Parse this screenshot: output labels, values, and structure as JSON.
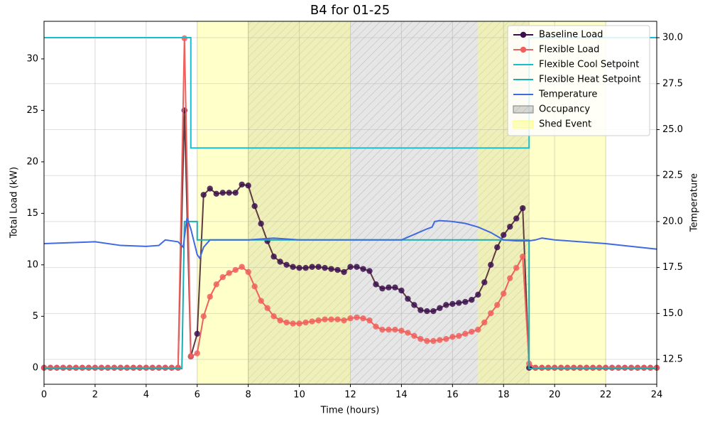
{
  "chart_data": {
    "type": "line",
    "title": "B4 for 01-25",
    "xlabel": "Time (hours)",
    "ylabel": "Total Load (kW)",
    "y2label": "Temperature",
    "xlim": [
      0,
      24
    ],
    "xticks": [
      0,
      2,
      4,
      6,
      8,
      10,
      12,
      14,
      16,
      18,
      20,
      22,
      24
    ],
    "ylim": [
      -1.6,
      33.65
    ],
    "yticks": [
      0,
      5,
      10,
      15,
      20,
      25,
      30
    ],
    "y2lim": [
      11.15,
      30.89
    ],
    "y2ticks": [
      12.5,
      {
        "value": 15,
        "label": "15.0"
      },
      17.5,
      {
        "value": 20,
        "label": "20.0"
      },
      22.5,
      {
        "value": 25,
        "label": "25.0"
      },
      27.5,
      {
        "value": 30,
        "label": "30.0"
      }
    ],
    "grid": true,
    "legend": "upper right",
    "x": [
      0,
      0.25,
      0.5,
      0.75,
      1,
      1.25,
      1.5,
      1.75,
      2,
      2.25,
      2.5,
      2.75,
      3,
      3.25,
      3.5,
      3.75,
      4,
      4.25,
      4.5,
      4.75,
      5,
      5.25,
      5.5,
      5.75,
      6,
      6.25,
      6.5,
      6.75,
      7,
      7.25,
      7.5,
      7.75,
      8,
      8.25,
      8.5,
      8.75,
      9,
      9.25,
      9.5,
      9.75,
      10,
      10.25,
      10.5,
      10.75,
      11,
      11.25,
      11.5,
      11.75,
      12,
      12.25,
      12.5,
      12.75,
      13,
      13.25,
      13.5,
      13.75,
      14,
      14.25,
      14.5,
      14.75,
      15,
      15.25,
      15.5,
      15.75,
      16,
      16.25,
      16.5,
      16.75,
      17,
      17.25,
      17.5,
      17.75,
      18,
      18.25,
      18.5,
      18.75,
      19,
      19.25,
      19.5,
      19.75,
      20,
      20.25,
      20.5,
      20.75,
      21,
      21.25,
      21.5,
      21.75,
      22,
      22.25,
      22.5,
      22.75,
      23,
      23.25,
      23.5,
      23.75,
      24
    ],
    "series": [
      {
        "name": "Baseline Load",
        "color": "#3b0f4f",
        "line_color": "#5e3b3f",
        "marker": true,
        "values": [
          0,
          0,
          0,
          0,
          0,
          0,
          0,
          0,
          0,
          0,
          0,
          0,
          0,
          0,
          0,
          0,
          0,
          0,
          0,
          0,
          0,
          0,
          25.0,
          1.1,
          3.3,
          16.8,
          17.4,
          16.9,
          17.0,
          17.0,
          17.0,
          17.8,
          17.7,
          15.7,
          14.0,
          12.3,
          10.8,
          10.3,
          10.0,
          9.8,
          9.7,
          9.7,
          9.8,
          9.8,
          9.7,
          9.6,
          9.5,
          9.3,
          9.8,
          9.8,
          9.6,
          9.4,
          8.1,
          7.7,
          7.8,
          7.8,
          7.5,
          6.7,
          6.1,
          5.6,
          5.5,
          5.5,
          5.8,
          6.1,
          6.2,
          6.3,
          6.4,
          6.6,
          7.1,
          8.3,
          10.0,
          11.7,
          12.9,
          13.7,
          14.5,
          15.5,
          0,
          0,
          0,
          0,
          0,
          0,
          0,
          0,
          0,
          0,
          0,
          0,
          0,
          0,
          0,
          0,
          0,
          0,
          0,
          0,
          0
        ]
      },
      {
        "name": "Flexible Load",
        "color": "#f0605d",
        "line_color": "#f0605d",
        "marker": true,
        "values": [
          0,
          0,
          0,
          0,
          0,
          0,
          0,
          0,
          0,
          0,
          0,
          0,
          0,
          0,
          0,
          0,
          0,
          0,
          0,
          0,
          0,
          0,
          32.0,
          1.1,
          1.4,
          5.0,
          6.9,
          8.1,
          8.8,
          9.2,
          9.5,
          9.8,
          9.3,
          7.9,
          6.5,
          5.8,
          5.0,
          4.6,
          4.4,
          4.3,
          4.3,
          4.4,
          4.5,
          4.6,
          4.7,
          4.7,
          4.7,
          4.6,
          4.8,
          4.9,
          4.8,
          4.6,
          4.0,
          3.7,
          3.7,
          3.7,
          3.6,
          3.4,
          3.1,
          2.8,
          2.6,
          2.6,
          2.7,
          2.8,
          3.0,
          3.1,
          3.3,
          3.5,
          3.7,
          4.4,
          5.3,
          6.1,
          7.2,
          8.7,
          9.7,
          10.8,
          0.4,
          0,
          0,
          0,
          0,
          0,
          0,
          0,
          0,
          0,
          0,
          0,
          0,
          0,
          0,
          0,
          0,
          0,
          0,
          0,
          0
        ]
      },
      {
        "name": "Flexible Cool Setpoint",
        "color": "#17becf",
        "axis": "y2",
        "x": [
          0,
          5.75,
          5.75,
          19,
          19,
          24
        ],
        "values": [
          30,
          30,
          24,
          24,
          30,
          30
        ]
      },
      {
        "name": "Flexible Heat Setpoint",
        "color": "#1aaeb0",
        "axis": "y2",
        "x": [
          0,
          5.4,
          5.5,
          6,
          6,
          19,
          19,
          24
        ],
        "values": [
          12,
          12,
          20,
          20,
          19,
          19,
          12,
          12
        ]
      },
      {
        "name": "Temperature",
        "color": "#4169e1",
        "axis": "y2",
        "x": [
          0,
          2,
          3,
          4,
          4.5,
          4.75,
          5.25,
          5.45,
          5.6,
          5.75,
          6,
          6.1,
          6.25,
          6.5,
          8,
          9,
          9.5,
          10,
          14,
          14.5,
          15,
          15.2,
          15.3,
          15.5,
          16,
          16.5,
          17,
          17.5,
          17.75,
          18,
          18.5,
          19,
          19.25,
          19.5,
          20,
          22,
          24
        ],
        "values": [
          18.8,
          18.9,
          18.7,
          18.65,
          18.7,
          19.0,
          18.9,
          18.6,
          20.2,
          19.6,
          18.2,
          18.0,
          18.6,
          19.0,
          19.0,
          19.1,
          19.05,
          19.0,
          19.0,
          19.3,
          19.6,
          19.7,
          20.0,
          20.05,
          20.0,
          19.9,
          19.7,
          19.4,
          19.2,
          19.0,
          18.95,
          18.95,
          19.0,
          19.1,
          19.0,
          18.8,
          18.5
        ]
      }
    ],
    "spans": [
      {
        "name": "Occupancy",
        "color": "#808080",
        "hatch": true,
        "ranges": [
          [
            8,
            19
          ]
        ]
      },
      {
        "name": "Shed Event",
        "color": "#ffff66",
        "ranges": [
          [
            6,
            12
          ],
          [
            17,
            22
          ]
        ]
      }
    ]
  }
}
